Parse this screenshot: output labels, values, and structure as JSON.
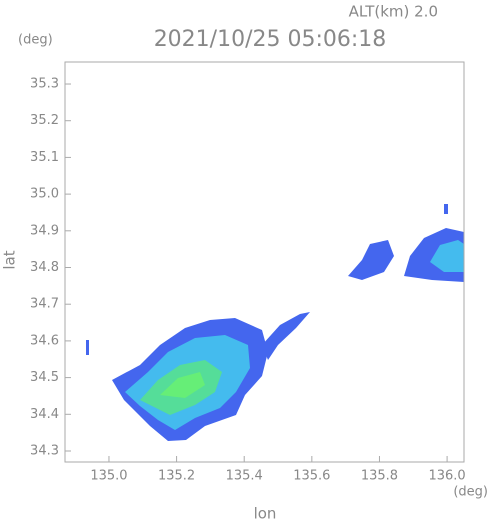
{
  "chart_data": {
    "type": "radar-map",
    "title": "2021/10/25 05:06:18",
    "subtitle": "ALT(km) 2.0",
    "x_label": "lon",
    "y_label": "lat",
    "x_unit": "(deg)",
    "y_unit": "(deg)",
    "xlim": [
      134.87,
      136.05
    ],
    "ylim": [
      34.27,
      35.36
    ],
    "xticks": [
      {
        "value": 135,
        "label": "135.0"
      },
      135.2,
      135.4,
      135.6,
      135.8,
      {
        "value": 136,
        "label": "136.0"
      }
    ],
    "yticks": [
      34.3,
      34.4,
      34.5,
      34.6,
      34.7,
      34.8,
      34.9,
      {
        "value": 35,
        "label": "35.0"
      },
      35.1,
      35.2,
      35.3
    ]
  }
}
